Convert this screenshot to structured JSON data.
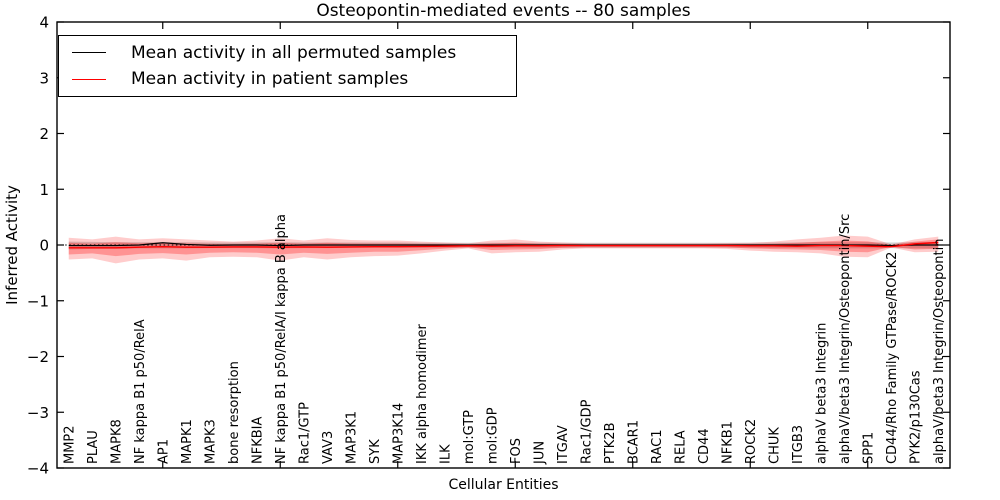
{
  "chart_data": {
    "type": "line",
    "title": "Osteopontin-mediated events -- 80 samples",
    "xlabel": "Cellular Entities",
    "ylabel": "Inferred Activity",
    "ylim": [
      -4,
      4
    ],
    "y_ticks": [
      4,
      3,
      2,
      1,
      0,
      -1,
      -2,
      -3,
      -4
    ],
    "grid": false,
    "legend_position": "upper left",
    "zero_line": {
      "value": 0,
      "style": "dotted",
      "color": "#000000"
    },
    "legend": {
      "items": [
        {
          "label": "Mean activity in all permuted samples",
          "color": "#000000"
        },
        {
          "label": "Mean activity in patient samples",
          "color": "#ff0000"
        }
      ]
    },
    "categories": [
      "MMP2",
      "PLAU",
      "MAPK8",
      "NF kappa B1 p50/RelA",
      "AP1",
      "MAPK1",
      "MAPK3",
      "bone resorption",
      "NFKBIA",
      "NF kappa B1 p50/RelA/I kappa B alpha",
      "Rac1/GTP",
      "VAV3",
      "MAP3K1",
      "SYK",
      "MAP3K14",
      "IKK alpha homodimer",
      "ILK",
      "mol:GTP",
      "mol:GDP",
      "FOS",
      "JUN",
      "ITGAV",
      "Rac1/GDP",
      "PTK2B",
      "BCAR1",
      "RAC1",
      "RELA",
      "CD44",
      "NFKB1",
      "ROCK2",
      "CHUK",
      "ITGB3",
      "alphaV beta3 Integrin",
      "alphaV/beta3 Integrin/Osteopontin/Src",
      "SPP1",
      "CD44/Rho Family GTPase/ROCK2",
      "PYK2/p130Cas",
      "alphaV/beta3 Integrin/Osteopontin"
    ],
    "series": [
      {
        "name": "Mean activity in all permuted samples",
        "color": "#000000",
        "width": 1.2,
        "values": [
          -0.01,
          -0.01,
          -0.01,
          0,
          0.04,
          0.01,
          -0.005,
          0,
          0,
          -0.01,
          0,
          0,
          0,
          0,
          0,
          0,
          0,
          0,
          0,
          0,
          0,
          0,
          0,
          0,
          0,
          0,
          0,
          0,
          0,
          0,
          0,
          0,
          0,
          0,
          0,
          -0.01,
          0,
          0
        ]
      },
      {
        "name": "Mean activity in patient samples",
        "color": "#ff0000",
        "width": 1.4,
        "values": [
          -0.05,
          -0.05,
          -0.05,
          -0.04,
          -0.03,
          -0.04,
          -0.04,
          -0.035,
          -0.035,
          -0.04,
          -0.035,
          -0.04,
          -0.035,
          -0.03,
          -0.03,
          -0.025,
          -0.02,
          -0.015,
          -0.02,
          -0.015,
          -0.015,
          -0.01,
          -0.01,
          -0.01,
          -0.01,
          -0.01,
          -0.01,
          -0.01,
          -0.01,
          -0.015,
          -0.015,
          -0.02,
          -0.01,
          -0.01,
          -0.02,
          -0.03,
          0.02,
          0.045
        ]
      }
    ],
    "bands": [
      {
        "name": "permuted-std-band",
        "color": "#999999",
        "opacity": 0.45,
        "upper": [
          0.06,
          0.055,
          0.05,
          0.05,
          0.05,
          0.05,
          0.045,
          0.045,
          0.045,
          0.05,
          0.045,
          0.045,
          0.045,
          0.045,
          0.045,
          0.04,
          0.04,
          0.04,
          0.04,
          0.04,
          0.04,
          0.04,
          0.04,
          0.04,
          0.04,
          0.04,
          0.04,
          0.04,
          0.04,
          0.04,
          0.045,
          0.045,
          0.05,
          0.05,
          0.05,
          0.045,
          0.05,
          0.055
        ],
        "lower": [
          -0.08,
          -0.07,
          -0.07,
          -0.06,
          -0.06,
          -0.06,
          -0.055,
          -0.055,
          -0.055,
          -0.06,
          -0.055,
          -0.055,
          -0.05,
          -0.05,
          -0.05,
          -0.05,
          -0.05,
          -0.05,
          -0.05,
          -0.05,
          -0.05,
          -0.05,
          -0.05,
          -0.05,
          -0.05,
          -0.05,
          -0.05,
          -0.05,
          -0.05,
          -0.05,
          -0.055,
          -0.055,
          -0.06,
          -0.06,
          -0.06,
          -0.055,
          -0.06,
          -0.065
        ]
      },
      {
        "name": "patient-std-outer-band",
        "color": "#ff0000",
        "opacity": 0.2,
        "upper": [
          0.13,
          0.1,
          0.15,
          0.1,
          0.12,
          0.1,
          0.08,
          0.06,
          0.08,
          0.12,
          0.08,
          0.12,
          0.09,
          0.08,
          0.08,
          0.06,
          0.045,
          0.03,
          0.08,
          0.1,
          0.06,
          0.045,
          0.03,
          0.03,
          0.03,
          0.03,
          0.03,
          0.03,
          0.035,
          0.04,
          0.06,
          0.1,
          0.13,
          0.17,
          0.15,
          0.01,
          0.1,
          0.15
        ],
        "lower": [
          -0.26,
          -0.24,
          -0.33,
          -0.26,
          -0.24,
          -0.28,
          -0.22,
          -0.21,
          -0.22,
          -0.28,
          -0.22,
          -0.26,
          -0.22,
          -0.2,
          -0.19,
          -0.15,
          -0.1,
          -0.06,
          -0.15,
          -0.13,
          -0.12,
          -0.08,
          -0.06,
          -0.06,
          -0.06,
          -0.06,
          -0.06,
          -0.06,
          -0.07,
          -0.1,
          -0.12,
          -0.13,
          -0.15,
          -0.21,
          -0.22,
          -0.045,
          -0.13,
          -0.12
        ]
      },
      {
        "name": "patient-std-inner-band",
        "color": "#ff0000",
        "opacity": 0.28,
        "upper": [
          0.04,
          0.025,
          0.05,
          0.03,
          0.045,
          0.03,
          0.02,
          0.013,
          0.022,
          0.04,
          0.022,
          0.04,
          0.027,
          0.025,
          0.025,
          0.018,
          0.012,
          0.008,
          0.03,
          0.042,
          0.022,
          0.017,
          0.01,
          0.01,
          0.01,
          0.01,
          0.01,
          0.01,
          0.012,
          0.013,
          0.022,
          0.04,
          0.06,
          0.08,
          0.065,
          0.0,
          0.06,
          0.1
        ],
        "lower": [
          -0.17,
          -0.15,
          -0.2,
          -0.16,
          -0.145,
          -0.17,
          -0.14,
          -0.13,
          -0.14,
          -0.17,
          -0.14,
          -0.16,
          -0.14,
          -0.12,
          -0.12,
          -0.094,
          -0.064,
          -0.04,
          -0.09,
          -0.08,
          -0.073,
          -0.049,
          -0.038,
          -0.038,
          -0.038,
          -0.038,
          -0.038,
          -0.038,
          -0.043,
          -0.062,
          -0.073,
          -0.08,
          -0.09,
          -0.12,
          -0.13,
          -0.03,
          -0.08,
          -0.07
        ]
      }
    ]
  }
}
